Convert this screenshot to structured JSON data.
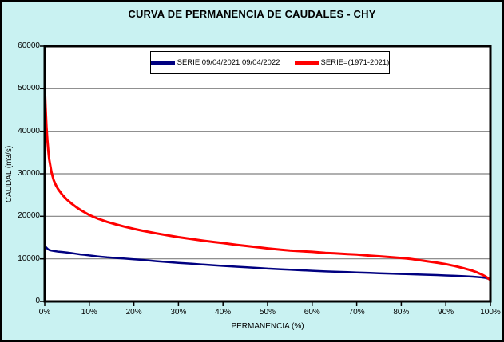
{
  "window": {
    "background_color": "#C9F2F2",
    "plot_background_color": "#FFFFFF",
    "gridline_color": "#808080",
    "frame_color": "#000000",
    "border_color": "#000000"
  },
  "title": "CURVA DE PERMANENCIA DE CAUDALES - CHY",
  "chart_data": {
    "type": "line",
    "title": "CURVA DE PERMANENCIA DE CAUDALES - CHY",
    "xlabel": "PERMANENCIA (%)",
    "ylabel": "CAUDAL (m3/s)",
    "xlim": [
      0,
      100
    ],
    "ylim": [
      0,
      60000
    ],
    "x_ticks": [
      "0%",
      "10%",
      "20%",
      "30%",
      "40%",
      "50%",
      "60%",
      "70%",
      "80%",
      "90%",
      "100%"
    ],
    "y_ticks": [
      "0",
      "10000",
      "20000",
      "30000",
      "40000",
      "50000",
      "60000"
    ],
    "grid": "horizontal-only",
    "legend_position": "top-center-inside",
    "series": [
      {
        "name": "SERIE 09/04/2021 09/04/2022",
        "color": "#000080",
        "points": [
          [
            0,
            13100
          ],
          [
            0.3,
            12700
          ],
          [
            0.7,
            12300
          ],
          [
            1,
            12100
          ],
          [
            1.5,
            11950
          ],
          [
            2,
            11850
          ],
          [
            3,
            11700
          ],
          [
            4,
            11600
          ],
          [
            5,
            11500
          ],
          [
            6,
            11350
          ],
          [
            7,
            11200
          ],
          [
            8,
            11050
          ],
          [
            9,
            10950
          ],
          [
            10,
            10800
          ],
          [
            12,
            10550
          ],
          [
            14,
            10350
          ],
          [
            16,
            10200
          ],
          [
            18,
            10050
          ],
          [
            20,
            9900
          ],
          [
            22,
            9750
          ],
          [
            25,
            9450
          ],
          [
            28,
            9200
          ],
          [
            30,
            9050
          ],
          [
            33,
            8850
          ],
          [
            35,
            8700
          ],
          [
            38,
            8500
          ],
          [
            40,
            8350
          ],
          [
            43,
            8150
          ],
          [
            45,
            8050
          ],
          [
            48,
            7850
          ],
          [
            50,
            7700
          ],
          [
            53,
            7550
          ],
          [
            55,
            7450
          ],
          [
            58,
            7300
          ],
          [
            60,
            7200
          ],
          [
            63,
            7050
          ],
          [
            65,
            6980
          ],
          [
            68,
            6880
          ],
          [
            70,
            6800
          ],
          [
            73,
            6700
          ],
          [
            75,
            6620
          ],
          [
            78,
            6520
          ],
          [
            80,
            6450
          ],
          [
            83,
            6350
          ],
          [
            85,
            6280
          ],
          [
            88,
            6180
          ],
          [
            90,
            6100
          ],
          [
            92,
            6020
          ],
          [
            94,
            5930
          ],
          [
            96,
            5820
          ],
          [
            98,
            5650
          ],
          [
            99,
            5500
          ],
          [
            100,
            5150
          ]
        ]
      },
      {
        "name": "SERIE=(1971-2021)",
        "color": "#FF0000",
        "points": [
          [
            0,
            50800
          ],
          [
            0.2,
            45500
          ],
          [
            0.4,
            41000
          ],
          [
            0.6,
            38000
          ],
          [
            0.8,
            35300
          ],
          [
            1,
            33400
          ],
          [
            1.5,
            30400
          ],
          [
            2,
            28500
          ],
          [
            2.5,
            27300
          ],
          [
            3,
            26400
          ],
          [
            4,
            25000
          ],
          [
            5,
            23900
          ],
          [
            6,
            23000
          ],
          [
            7,
            22200
          ],
          [
            8,
            21500
          ],
          [
            9,
            20900
          ],
          [
            10,
            20300
          ],
          [
            12,
            19400
          ],
          [
            14,
            18700
          ],
          [
            16,
            18100
          ],
          [
            18,
            17550
          ],
          [
            20,
            17050
          ],
          [
            22,
            16600
          ],
          [
            25,
            16000
          ],
          [
            28,
            15450
          ],
          [
            30,
            15100
          ],
          [
            33,
            14650
          ],
          [
            35,
            14350
          ],
          [
            38,
            13950
          ],
          [
            40,
            13700
          ],
          [
            43,
            13300
          ],
          [
            45,
            13050
          ],
          [
            48,
            12700
          ],
          [
            50,
            12450
          ],
          [
            53,
            12150
          ],
          [
            55,
            11950
          ],
          [
            58,
            11750
          ],
          [
            60,
            11650
          ],
          [
            63,
            11400
          ],
          [
            65,
            11300
          ],
          [
            68,
            11100
          ],
          [
            70,
            11000
          ],
          [
            73,
            10750
          ],
          [
            75,
            10600
          ],
          [
            78,
            10350
          ],
          [
            80,
            10200
          ],
          [
            82,
            10000
          ],
          [
            85,
            9550
          ],
          [
            88,
            9100
          ],
          [
            90,
            8750
          ],
          [
            92,
            8300
          ],
          [
            94,
            7800
          ],
          [
            96,
            7200
          ],
          [
            97,
            6800
          ],
          [
            98,
            6350
          ],
          [
            99,
            5800
          ],
          [
            100,
            5000
          ]
        ]
      }
    ]
  }
}
